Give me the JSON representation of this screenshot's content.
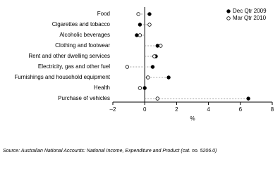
{
  "chart_data": {
    "type": "dot",
    "categories": [
      "Food",
      "Cigarettes and tobacco",
      "Alcoholic beverages",
      "Clothing and footwear",
      "Rent and other dwelling services",
      "Electricity, gas and other fuel",
      "Furnishings and household equipment",
      "Health",
      "Purchase of vehicles"
    ],
    "series": [
      {
        "name": "Dec Qtr 2009",
        "color": "#000000",
        "marker": "filled",
        "values": [
          0.3,
          -0.3,
          -0.5,
          0.8,
          0.7,
          0.5,
          1.5,
          0.0,
          6.5
        ]
      },
      {
        "name": "Mar Qtr 2010",
        "color": "#000000",
        "marker": "open",
        "values": [
          -0.4,
          0.3,
          -0.3,
          1.0,
          0.6,
          -1.1,
          0.2,
          -0.3,
          0.8
        ]
      }
    ],
    "xlim": [
      -2,
      8
    ],
    "xticks": [
      {
        "value": -2,
        "label": "–2"
      },
      0,
      2,
      4,
      6,
      8
    ],
    "xlabel": "%",
    "legend": "upper right",
    "source": "Source: Australian National Accounts: National Income, Expenditure and Product (cat. no. 5206.0)"
  }
}
